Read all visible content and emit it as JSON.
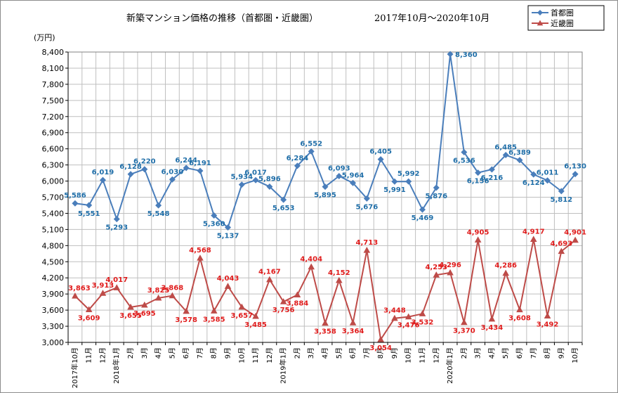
{
  "chart_data": {
    "type": "line",
    "title": "新築マンション価格の推移（首都圏・近畿圏）",
    "subtitle": "2017年10月～2020年10月",
    "ylabel": "(万円)",
    "ylim": [
      3000,
      8400
    ],
    "ytick_step": 300,
    "grid": true,
    "legend_placement": "top-right",
    "categories": [
      "2017年10月",
      "11月",
      "12月",
      "2018年1月",
      "2月",
      "3月",
      "4月",
      "5月",
      "6月",
      "7月",
      "8月",
      "9月",
      "10月",
      "11月",
      "12月",
      "2019年1月",
      "2月",
      "3月",
      "4月",
      "5月",
      "6月",
      "7月",
      "8月",
      "9月",
      "10月",
      "11月",
      "12月",
      "2020年1月",
      "2月",
      "3月",
      "4月",
      "5月",
      "6月",
      "7月",
      "8月",
      "9月",
      "10月"
    ],
    "series": [
      {
        "name": "首都圏",
        "color": "#4a7ebb",
        "label_color": "#1f6ea8",
        "marker": "diamond",
        "values": [
          5586,
          5551,
          6019,
          5293,
          6128,
          6220,
          5548,
          6030,
          6244,
          6191,
          5360,
          5137,
          5934,
          6017,
          5896,
          5653,
          6284,
          6552,
          5895,
          6093,
          5964,
          5676,
          6405,
          5991,
          5992,
          5469,
          5876,
          8360,
          6536,
          6156,
          6216,
          6485,
          6389,
          6124,
          6011,
          5812,
          6130
        ],
        "labels": [
          "5,586",
          "5,551",
          "6,019",
          "5,293",
          "6,128",
          "6,220",
          "5,548",
          "6,030",
          "6,244",
          "6,191",
          "5,360",
          "5,137",
          "5,934",
          "6,017",
          "5,896",
          "5,653",
          "6,284",
          "6,552",
          "5,895",
          "6,093",
          "5,964",
          "5,676",
          "6,405",
          "5,991",
          "5,992",
          "5,469",
          "5,876",
          "8,360",
          "6,536",
          "6,156",
          "6,216",
          "6,485",
          "6,389",
          "6,124",
          "6,011",
          "5,812",
          "6,130"
        ]
      },
      {
        "name": "近畿圏",
        "color": "#be4b48",
        "label_color": "#e01b1b",
        "marker": "triangle",
        "values": [
          3863,
          3609,
          3913,
          4017,
          3655,
          3695,
          3825,
          3868,
          3578,
          4568,
          3585,
          4043,
          3657,
          3485,
          4167,
          3756,
          3884,
          4404,
          3358,
          4152,
          3364,
          4713,
          3054,
          3448,
          3476,
          3532,
          4253,
          4296,
          3370,
          4905,
          3434,
          4286,
          3608,
          4917,
          3492,
          4693,
          4901
        ],
        "labels": [
          "3,863",
          "3,609",
          "3,913",
          "4,017",
          "3,655",
          "3,695",
          "3,825",
          "3,868",
          "3,578",
          "4,568",
          "3,585",
          "4,043",
          "3,657",
          "3,485",
          "4,167",
          "3,756",
          "3,884",
          "4,404",
          "3,358",
          "4,152",
          "3,364",
          "4,713",
          "3,054",
          "3,448",
          "3,476",
          "3,532",
          "4,253",
          "4,296",
          "3,370",
          "4,905",
          "3,434",
          "4,286",
          "3,608",
          "4,917",
          "3,492",
          "4,693",
          "4,901"
        ]
      }
    ]
  }
}
